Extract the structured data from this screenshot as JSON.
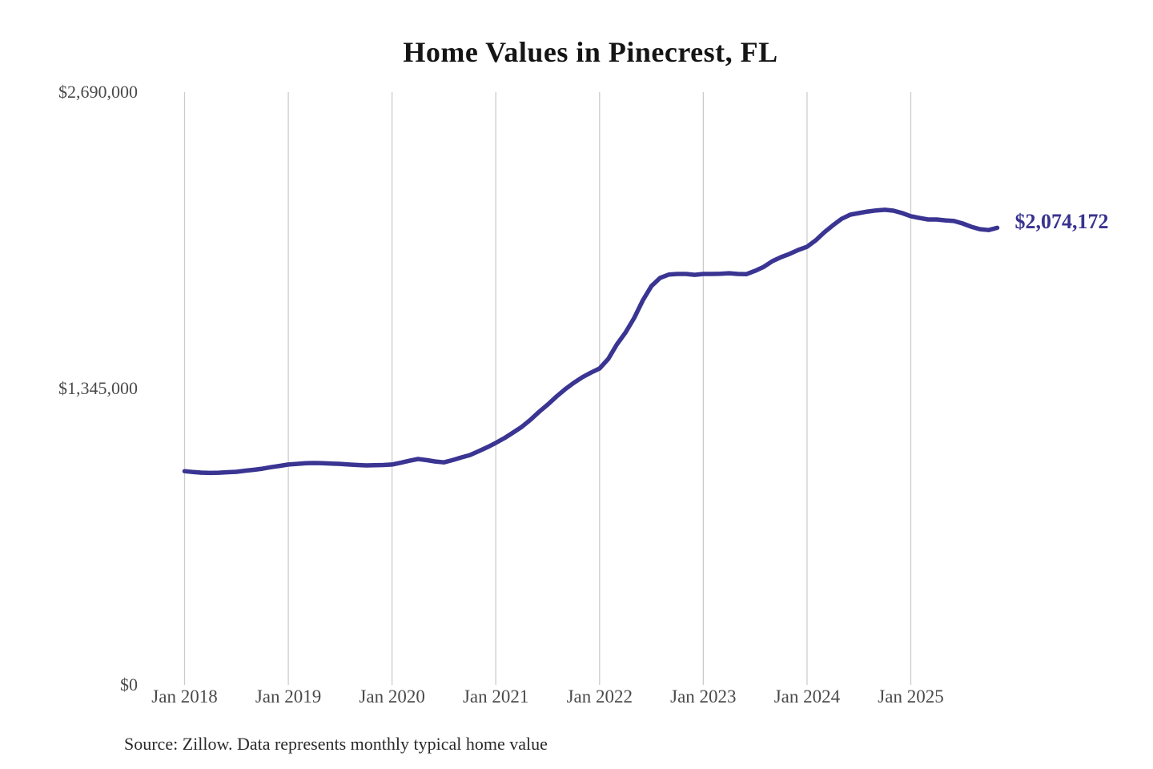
{
  "title": "Home Values in Pinecrest, FL",
  "source_note": "Source: Zillow. Data represents monthly typical home value",
  "colors": {
    "line": "#3a3492",
    "grid": "#cccccc",
    "tick_text": "#4a4a4a",
    "title_text": "#151515",
    "end_label_text": "#38328f",
    "background": "#ffffff"
  },
  "chart_data": {
    "type": "line",
    "title": "Home Values in Pinecrest, FL",
    "xlabel": "",
    "ylabel": "",
    "x_tick_labels": [
      "Jan 2018",
      "Jan 2019",
      "Jan 2020",
      "Jan 2021",
      "Jan 2022",
      "Jan 2023",
      "Jan 2024",
      "Jan 2025"
    ],
    "y_tick_labels": [
      "$2,690,000",
      "$1,345,000",
      "$0"
    ],
    "ylim": [
      0,
      2690000
    ],
    "grid": "vertical-only",
    "legend": "none",
    "interval": "monthly",
    "x_start": "2018-01",
    "x_end": "2025-11",
    "end_label": "$2,074,172",
    "final_value": 2074172,
    "series": [
      {
        "name": "Typical home value",
        "values": [
          970000,
          966000,
          963000,
          962000,
          963000,
          965000,
          967000,
          972000,
          976000,
          981000,
          988000,
          994000,
          1000000,
          1003000,
          1006000,
          1007000,
          1006000,
          1004000,
          1003000,
          1000000,
          998000,
          996000,
          997000,
          998000,
          1000000,
          1008000,
          1017000,
          1025000,
          1020000,
          1014000,
          1010000,
          1020000,
          1032000,
          1043000,
          1060000,
          1078000,
          1098000,
          1120000,
          1145000,
          1171000,
          1203000,
          1239000,
          1272000,
          1308000,
          1341000,
          1370000,
          1396000,
          1417000,
          1436000,
          1479000,
          1545000,
          1599000,
          1665000,
          1745000,
          1810000,
          1847000,
          1862000,
          1865000,
          1865000,
          1861000,
          1865000,
          1865000,
          1866000,
          1868000,
          1865000,
          1864000,
          1879000,
          1897000,
          1923000,
          1941000,
          1956000,
          1974000,
          1988000,
          2017000,
          2054000,
          2086000,
          2115000,
          2134000,
          2141000,
          2148000,
          2153000,
          2156000,
          2152000,
          2141000,
          2127000,
          2119000,
          2112000,
          2112000,
          2108000,
          2105000,
          2094000,
          2079000,
          2068000,
          2064000,
          2074172
        ]
      }
    ]
  }
}
